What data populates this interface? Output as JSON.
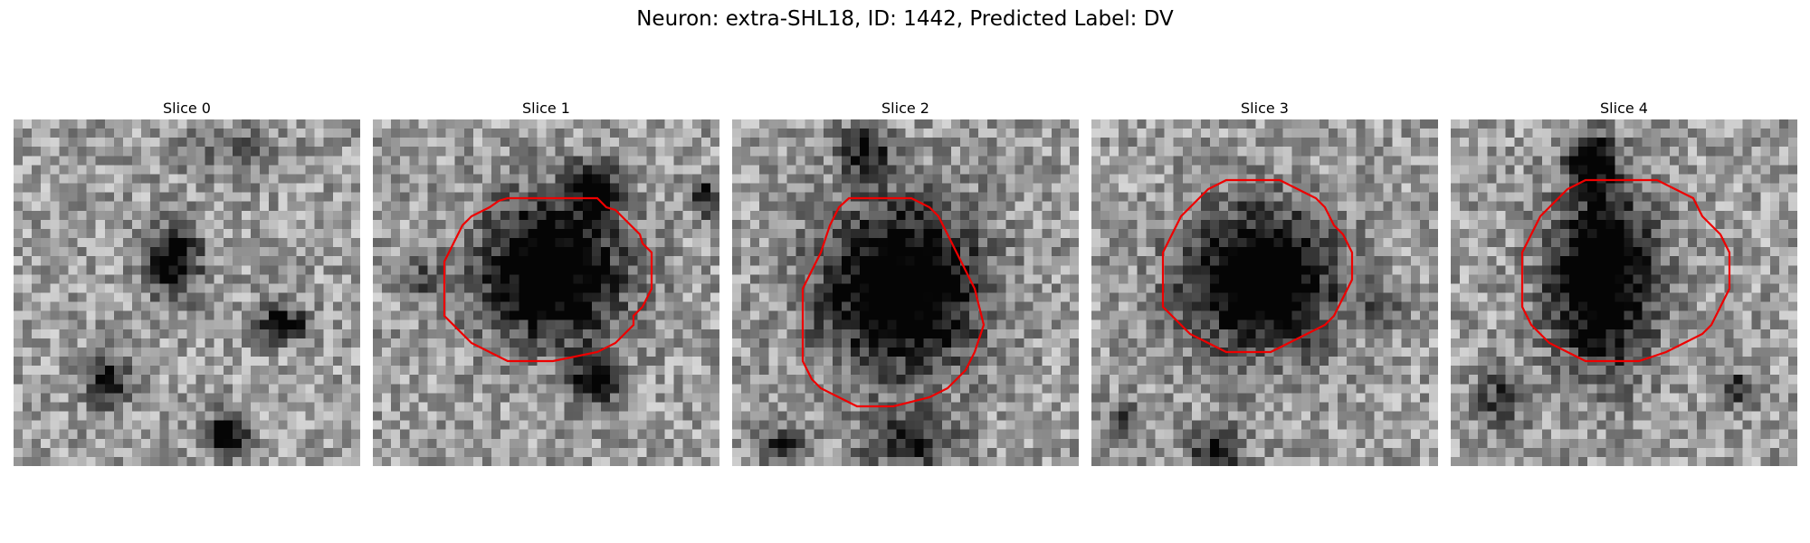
{
  "figure": {
    "title": "Neuron: extra-SHL18, ID: 1442, Predicted Label: DV"
  },
  "panels": [
    {
      "title": "Slice 0",
      "has_outline": false
    },
    {
      "title": "Slice 1",
      "has_outline": true
    },
    {
      "title": "Slice 2",
      "has_outline": true
    },
    {
      "title": "Slice 3",
      "has_outline": true
    },
    {
      "title": "Slice 4",
      "has_outline": true
    }
  ],
  "colors": {
    "outline": "#ee0000",
    "colormap": "grayscale"
  }
}
